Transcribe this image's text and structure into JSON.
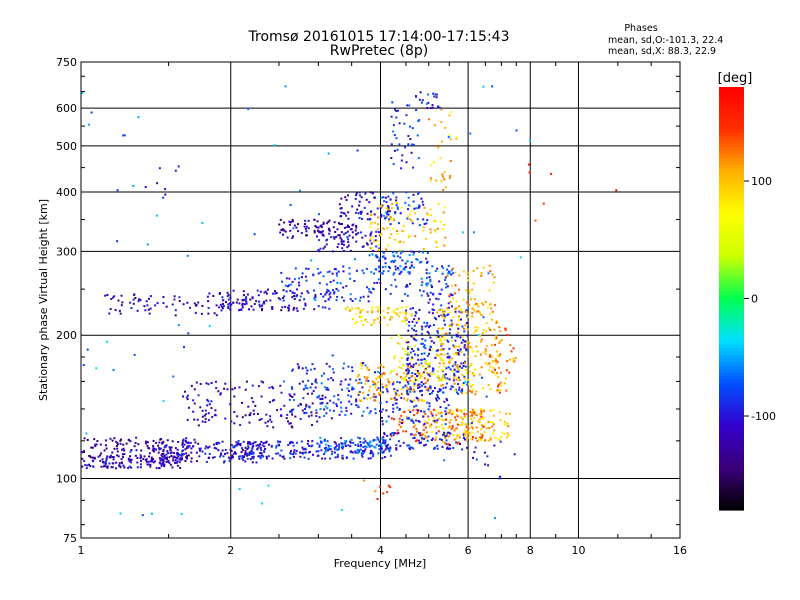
{
  "chart_data": {
    "type": "scatter",
    "title": "Tromsø 20161015 17:14:00-17:15:43",
    "subtitle": "RwPretec (8p)",
    "xlabel": "Frequency [MHz]",
    "ylabel": "Stationary phase Virtual Height [km]",
    "x_scale": "log",
    "y_scale": "log",
    "xlim": [
      1,
      16
    ],
    "ylim": [
      75,
      750
    ],
    "x_ticks": [
      1,
      2,
      4,
      6,
      8,
      10,
      16
    ],
    "y_ticks": [
      75,
      100,
      200,
      300,
      400,
      500,
      600,
      750
    ],
    "grid": true,
    "phase_stats": {
      "heading": "Phases",
      "line_o": "mean, sd,O:-101.3, 22.4",
      "line_x": "mean, sd,X:  88.3, 22.9"
    },
    "colorbar": {
      "label": "[deg]",
      "range": [
        -180,
        180
      ],
      "ticks": [
        100,
        0,
        -100
      ],
      "colormap": [
        "#000000",
        "#3a007a",
        "#3300cc",
        "#0050ff",
        "#00e0ff",
        "#00ff50",
        "#ccff00",
        "#ffff00",
        "#ffb000",
        "#ff3000",
        "#ff0000"
      ]
    },
    "point_groups": [
      {
        "f": [
          1.0,
          1.6
        ],
        "h": [
          105,
          112
        ],
        "phase": -115,
        "count": 140
      },
      {
        "f": [
          1.0,
          1.7
        ],
        "h": [
          110,
          122
        ],
        "phase": -125,
        "count": 120
      },
      {
        "f": [
          1.4,
          2.4
        ],
        "h": [
          108,
          120
        ],
        "phase": -110,
        "count": 150
      },
      {
        "f": [
          2.0,
          4.2
        ],
        "h": [
          110,
          120
        ],
        "phase": -95,
        "count": 200
      },
      {
        "f": [
          3.0,
          4.2
        ],
        "h": [
          113,
          122
        ],
        "phase": -70,
        "count": 80
      },
      {
        "f": [
          4.0,
          6.0
        ],
        "h": [
          115,
          125
        ],
        "phase": -100,
        "count": 90
      },
      {
        "f": [
          4.2,
          6.5
        ],
        "h": [
          118,
          140
        ],
        "phase": 130,
        "count": 130
      },
      {
        "f": [
          5.0,
          7.3
        ],
        "h": [
          120,
          140
        ],
        "phase": 95,
        "count": 110
      },
      {
        "f": [
          1.6,
          3.2
        ],
        "h": [
          128,
          160
        ],
        "phase": -120,
        "count": 150
      },
      {
        "f": [
          2.6,
          4.0
        ],
        "h": [
          135,
          175
        ],
        "phase": -85,
        "count": 130
      },
      {
        "f": [
          3.6,
          5.0
        ],
        "h": [
          145,
          175
        ],
        "phase": 110,
        "count": 130
      },
      {
        "f": [
          4.0,
          5.5
        ],
        "h": [
          130,
          160
        ],
        "phase": -90,
        "count": 100
      },
      {
        "f": [
          4.5,
          6.0
        ],
        "h": [
          150,
          230
        ],
        "phase": -95,
        "count": 260
      },
      {
        "f": [
          5.2,
          7.0
        ],
        "h": [
          150,
          230
        ],
        "phase": 100,
        "count": 200
      },
      {
        "f": [
          4.2,
          5.4
        ],
        "h": [
          160,
          200
        ],
        "phase": 70,
        "count": 60
      },
      {
        "f": [
          6.5,
          7.5
        ],
        "h": [
          150,
          210
        ],
        "phase": 125,
        "count": 40
      },
      {
        "f": [
          1.1,
          2.0
        ],
        "h": [
          220,
          245
        ],
        "phase": -115,
        "count": 70
      },
      {
        "f": [
          1.9,
          3.2
        ],
        "h": [
          225,
          250
        ],
        "phase": -110,
        "count": 120
      },
      {
        "f": [
          2.5,
          4.6
        ],
        "h": [
          235,
          280
        ],
        "phase": -85,
        "count": 120
      },
      {
        "f": [
          3.4,
          4.8
        ],
        "h": [
          210,
          230
        ],
        "phase": 90,
        "count": 70
      },
      {
        "f": [
          3.8,
          5.0
        ],
        "h": [
          270,
          300
        ],
        "phase": -80,
        "count": 70
      },
      {
        "f": [
          4.8,
          5.6
        ],
        "h": [
          230,
          280
        ],
        "phase": -85,
        "count": 60
      },
      {
        "f": [
          5.4,
          6.8
        ],
        "h": [
          230,
          280
        ],
        "phase": 110,
        "count": 50
      },
      {
        "f": [
          2.5,
          3.6
        ],
        "h": [
          320,
          350
        ],
        "phase": -125,
        "count": 90
      },
      {
        "f": [
          3.0,
          4.0
        ],
        "h": [
          300,
          330
        ],
        "phase": -105,
        "count": 60
      },
      {
        "f": [
          3.3,
          4.2
        ],
        "h": [
          350,
          400
        ],
        "phase": -110,
        "count": 60
      },
      {
        "f": [
          3.8,
          5.4
        ],
        "h": [
          300,
          380
        ],
        "phase": 95,
        "count": 90
      },
      {
        "f": [
          4.0,
          5.0
        ],
        "h": [
          340,
          400
        ],
        "phase": -85,
        "count": 50
      },
      {
        "f": [
          4.2,
          4.8
        ],
        "h": [
          440,
          640
        ],
        "phase": -90,
        "count": 40
      },
      {
        "f": [
          4.7,
          5.3
        ],
        "h": [
          600,
          650
        ],
        "phase": -95,
        "count": 20
      },
      {
        "f": [
          5.0,
          5.7
        ],
        "h": [
          400,
          600
        ],
        "phase": 100,
        "count": 30
      },
      {
        "f": [
          1.3,
          1.6
        ],
        "h": [
          385,
          460
        ],
        "phase": -110,
        "count": 8
      },
      {
        "f": [
          6.0,
          7.6
        ],
        "h": [
          100,
          120
        ],
        "phase": -95,
        "count": 12
      },
      {
        "f": [
          3.7,
          4.2
        ],
        "h": [
          90,
          100
        ],
        "phase": 140,
        "count": 8
      },
      {
        "f": [
          7.0,
          12.5
        ],
        "h": [
          300,
          640
        ],
        "phase": 150,
        "count": 6
      },
      {
        "f": [
          1.0,
          8.0
        ],
        "h": [
          80,
          700
        ],
        "phase": -60,
        "count": 80
      }
    ]
  }
}
